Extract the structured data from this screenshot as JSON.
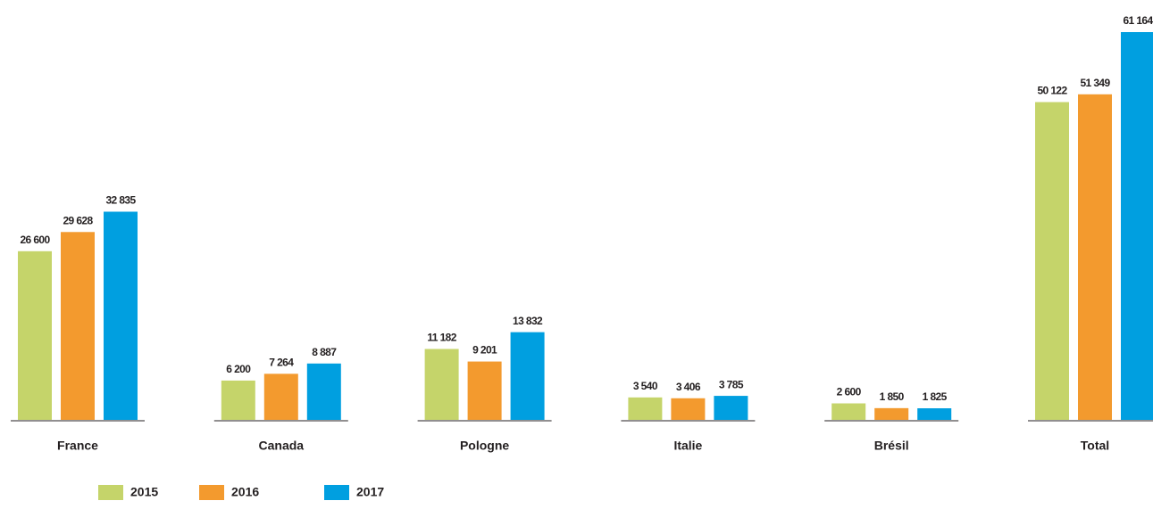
{
  "chart_data": {
    "type": "bar",
    "categories": [
      "France",
      "Canada",
      "Pologne",
      "Italie",
      "Brésil",
      "Total"
    ],
    "series": [
      {
        "name": "2015",
        "color": "#c5d46a",
        "values": [
          26600,
          6200,
          11182,
          3540,
          2600,
          50122
        ],
        "value_labels": [
          "26 600",
          "6 200",
          "11 182",
          "3 540",
          "2 600",
          "50 122"
        ]
      },
      {
        "name": "2016",
        "color": "#f39a2e",
        "values": [
          29628,
          7264,
          9201,
          3406,
          1850,
          51349
        ],
        "value_labels": [
          "29 628",
          "7 264",
          "9 201",
          "3 406",
          "1 850",
          "51 349"
        ]
      },
      {
        "name": "2017",
        "color": "#009fe0",
        "values": [
          32835,
          8887,
          13832,
          3785,
          1825,
          61164
        ],
        "value_labels": [
          "32 835",
          "8 887",
          "13 832",
          "3 785",
          "1 825",
          "61 164"
        ]
      }
    ]
  }
}
